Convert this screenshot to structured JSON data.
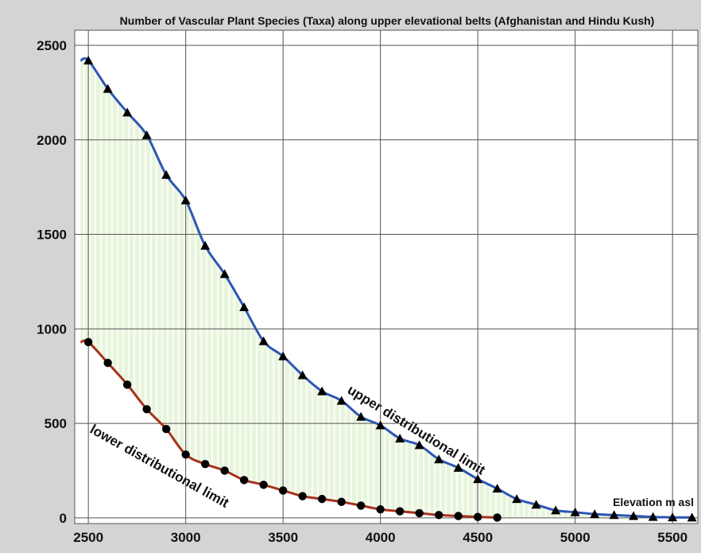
{
  "chart_data": {
    "type": "line",
    "title": "Number of Vascular Plant Species (Taxa) along upper elevational belts (Afghanistan and Hindu Kush)",
    "x_unit_label": "Elevation m asl",
    "xlabel": "Elevation m asl",
    "ylabel": "",
    "xlim": [
      2430,
      5630
    ],
    "ylim": [
      -30,
      2580
    ],
    "x_ticks": [
      2500,
      3000,
      3500,
      4000,
      4500,
      5000,
      5500
    ],
    "y_ticks": [
      0,
      500,
      1000,
      1500,
      2000,
      2500
    ],
    "grid": true,
    "legend": "none",
    "fill_between": {
      "color": "#e9f6df",
      "hatch_color": "#ffffff"
    },
    "series": [
      {
        "annotation": "upper distributional limit",
        "color": "#2d56b4",
        "marker": "triangle",
        "x": [
          2500,
          2600,
          2700,
          2800,
          2900,
          3000,
          3100,
          3200,
          3300,
          3400,
          3500,
          3600,
          3700,
          3800,
          3900,
          4000,
          4100,
          4200,
          4300,
          4400,
          4500,
          4600,
          4700,
          4800,
          4900,
          5000,
          5100,
          5200,
          5300,
          5400,
          5500,
          5600
        ],
        "values": [
          2420,
          2270,
          2145,
          2025,
          1815,
          1680,
          1440,
          1290,
          1115,
          935,
          855,
          755,
          670,
          620,
          535,
          490,
          420,
          385,
          310,
          265,
          205,
          155,
          100,
          70,
          40,
          30,
          20,
          15,
          10,
          5,
          3,
          2
        ]
      },
      {
        "annotation": "lower distributional limit",
        "color": "#a8321c",
        "marker": "circle",
        "x": [
          2500,
          2600,
          2700,
          2800,
          2900,
          3000,
          3100,
          3200,
          3300,
          3400,
          3500,
          3600,
          3700,
          3800,
          3900,
          4000,
          4100,
          4200,
          4300,
          4400,
          4500,
          4600
        ],
        "values": [
          930,
          820,
          705,
          575,
          470,
          335,
          285,
          250,
          200,
          175,
          145,
          115,
          100,
          85,
          65,
          45,
          35,
          25,
          15,
          10,
          5,
          2
        ]
      }
    ]
  }
}
